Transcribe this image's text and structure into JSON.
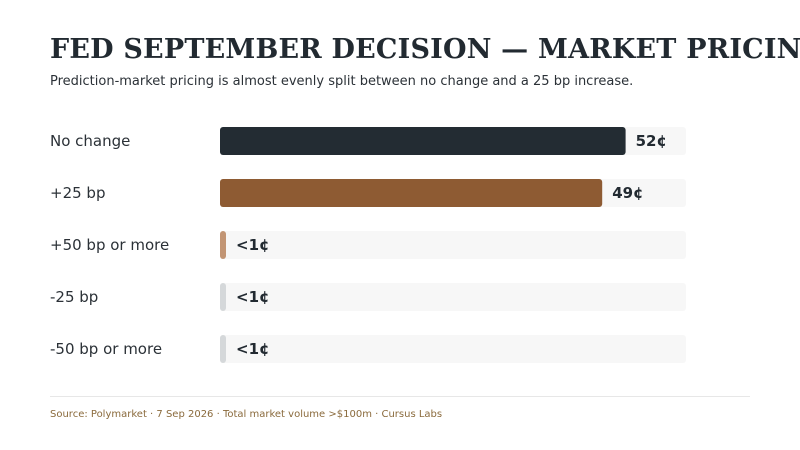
{
  "title": "FED SEPTEMBER DECISION — MARKET PRICING",
  "subtitle": "Prediction-market pricing is almost evenly split between no change and a 25 bp increase.",
  "source": "Source: Polymarket · 7 Sep 2026 · Total market volume >$100m · Cursus Labs",
  "chart_data": {
    "type": "bar",
    "orientation": "horizontal",
    "categories": [
      "No change",
      "+25 bp",
      "+50 bp or more",
      "-25 bp",
      "-50 bp or more"
    ],
    "values": [
      52,
      49,
      0.5,
      0.5,
      0.5
    ],
    "value_labels": [
      "52¢",
      "49¢",
      "<1¢",
      "<1¢",
      "<1¢"
    ],
    "unit": "¢",
    "xlim": [
      0,
      100
    ],
    "colors": [
      "#232c33",
      "#8e5b33",
      "#c29574",
      "#d5d8da",
      "#d5d8da"
    ],
    "track_color": "#f7f7f7",
    "grid": false,
    "legend": "none"
  }
}
